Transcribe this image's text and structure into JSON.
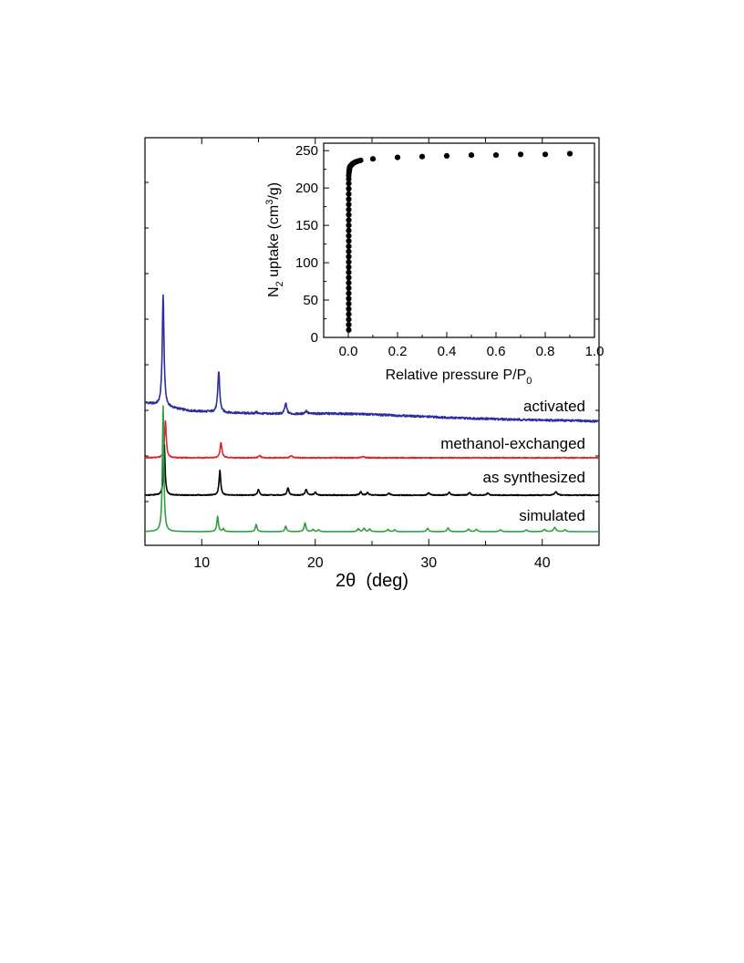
{
  "chart_data": [
    {
      "type": "line",
      "title": "",
      "xlabel": "2θ  (deg)",
      "ylabel": "",
      "xlim": [
        5,
        45
      ],
      "xticks": [
        10,
        20,
        30,
        40
      ],
      "y_axis_ticks_labeled": false,
      "stacked_offset_traces": true,
      "series": [
        {
          "name": "activated",
          "color": "#2b2e9c",
          "baseline_profile": [
            [
              5,
              0.55
            ],
            [
              6,
              0.5
            ],
            [
              7,
              0.45
            ],
            [
              9,
              0.37
            ],
            [
              12,
              0.33
            ],
            [
              15,
              0.31
            ],
            [
              18,
              0.3
            ],
            [
              21,
              0.31
            ],
            [
              24,
              0.3
            ],
            [
              27,
              0.27
            ],
            [
              30,
              0.24
            ],
            [
              33,
              0.21
            ],
            [
              36,
              0.19
            ],
            [
              39,
              0.17
            ],
            [
              42,
              0.16
            ],
            [
              45,
              0.14
            ]
          ],
          "peaks": [
            [
              6.6,
              2.45
            ],
            [
              11.5,
              0.9
            ],
            [
              17.4,
              0.23
            ],
            [
              19.2,
              0.07
            ],
            [
              14.8,
              0.03
            ]
          ]
        },
        {
          "name": "methanol-exchanged",
          "color": "#e0232b",
          "baseline_profile": [
            [
              5,
              0.0
            ],
            [
              45,
              0.0
            ]
          ],
          "peaks": [
            [
              6.8,
              0.8
            ],
            [
              11.7,
              0.34
            ],
            [
              15.1,
              0.05
            ],
            [
              17.9,
              0.05
            ],
            [
              24.2,
              0.03
            ]
          ]
        },
        {
          "name": "as synthesized",
          "color": "#000000",
          "baseline_profile": [
            [
              5,
              0.0
            ],
            [
              45,
              0.0
            ]
          ],
          "peaks": [
            [
              6.7,
              1.05
            ],
            [
              11.6,
              0.5
            ],
            [
              15.0,
              0.12
            ],
            [
              17.6,
              0.15
            ],
            [
              19.2,
              0.12
            ],
            [
              20.0,
              0.06
            ],
            [
              24.0,
              0.07
            ],
            [
              24.6,
              0.05
            ],
            [
              26.5,
              0.04
            ],
            [
              30.0,
              0.05
            ],
            [
              31.8,
              0.06
            ],
            [
              33.6,
              0.05
            ],
            [
              35.2,
              0.04
            ],
            [
              41.2,
              0.07
            ]
          ]
        },
        {
          "name": "simulated",
          "color": "#2ea043",
          "baseline_profile": [
            [
              5,
              0.0
            ],
            [
              45,
              0.0
            ]
          ],
          "peaks": [
            [
              6.6,
              3.45
            ],
            [
              11.4,
              0.42
            ],
            [
              11.9,
              0.08
            ],
            [
              14.8,
              0.2
            ],
            [
              17.4,
              0.15
            ],
            [
              19.1,
              0.24
            ],
            [
              19.8,
              0.06
            ],
            [
              20.3,
              0.05
            ],
            [
              23.8,
              0.08
            ],
            [
              24.3,
              0.09
            ],
            [
              24.8,
              0.07
            ],
            [
              26.4,
              0.06
            ],
            [
              27.0,
              0.05
            ],
            [
              29.9,
              0.09
            ],
            [
              31.7,
              0.1
            ],
            [
              33.5,
              0.07
            ],
            [
              34.2,
              0.06
            ],
            [
              36.3,
              0.05
            ],
            [
              38.6,
              0.05
            ],
            [
              40.2,
              0.06
            ],
            [
              41.1,
              0.12
            ],
            [
              42.0,
              0.05
            ]
          ]
        }
      ]
    },
    {
      "type": "scatter",
      "title": "",
      "xlabel": "Relative pressure P/P",
      "xlabel_sub": "0",
      "ylabel_pre": "N",
      "ylabel_sub": "2",
      "ylabel_mid": " uptake (cm",
      "ylabel_sup": "3",
      "ylabel_post": "/g)",
      "xlim": [
        -0.1,
        1.0
      ],
      "ylim": [
        0,
        260
      ],
      "xticks": [
        "0.0",
        "0.2",
        "0.4",
        "0.6",
        "0.8",
        "1.0"
      ],
      "yticks": [
        "0",
        "50",
        "100",
        "150",
        "200",
        "250"
      ],
      "x": [
        0.002,
        0.002,
        0.002,
        0.002,
        0.002,
        0.002,
        0.002,
        0.002,
        0.002,
        0.002,
        0.002,
        0.002,
        0.002,
        0.002,
        0.002,
        0.002,
        0.002,
        0.002,
        0.002,
        0.002,
        0.002,
        0.002,
        0.002,
        0.002,
        0.002,
        0.002,
        0.002,
        0.002,
        0.002,
        0.002,
        0.002,
        0.003,
        0.004,
        0.005,
        0.006,
        0.008,
        0.01,
        0.013,
        0.016,
        0.02,
        0.025,
        0.03,
        0.04,
        0.05,
        0.1,
        0.2,
        0.3,
        0.4,
        0.5,
        0.6,
        0.7,
        0.8,
        0.9
      ],
      "y": [
        10,
        17,
        24,
        31,
        38,
        45,
        52,
        59,
        66,
        73,
        80,
        87,
        94,
        101,
        108,
        115,
        122,
        129,
        136,
        143,
        150,
        157,
        164,
        171,
        178,
        185,
        192,
        199,
        206,
        212,
        217,
        221,
        224,
        226,
        228,
        229,
        230,
        231,
        232,
        233,
        234,
        235,
        236,
        237,
        239,
        241,
        242,
        243,
        244,
        244,
        245,
        245,
        246
      ]
    }
  ],
  "colors": {
    "axis": "#000000",
    "activated": "#2b2e9c",
    "methanol": "#e0232b",
    "synthesized": "#000000",
    "simulated": "#2ea043"
  }
}
